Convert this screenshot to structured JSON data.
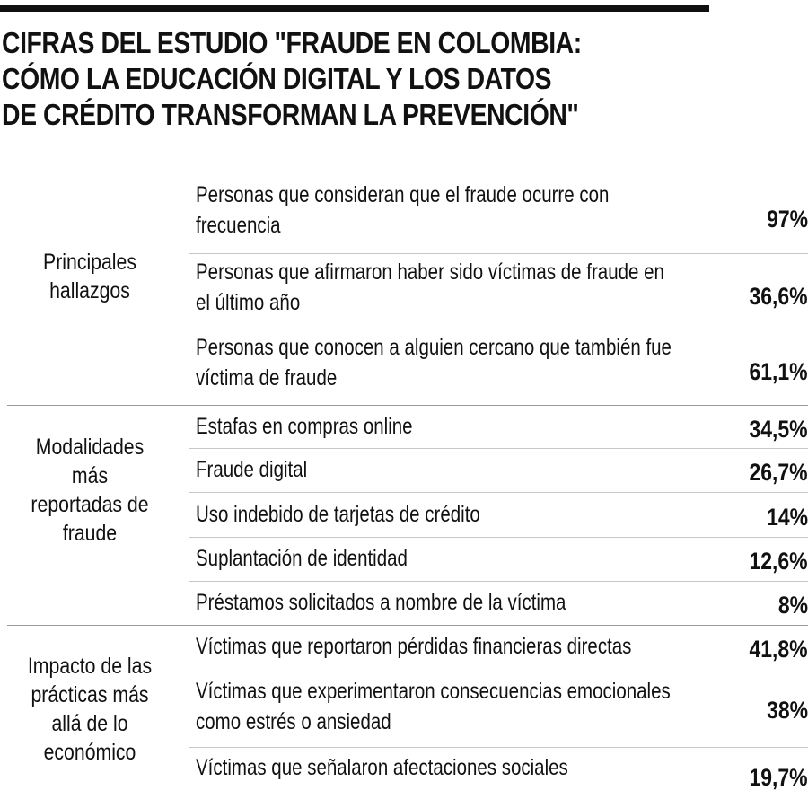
{
  "title": {
    "line1": "CIFRAS DEL ESTUDIO \"FRAUDE EN COLOMBIA:",
    "line2": "CÓMO LA EDUCACIÓN DIGITAL Y LOS DATOS",
    "line3": "DE CRÉDITO TRANSFORMAN LA PREVENCIÓN\""
  },
  "groups": [
    {
      "label": [
        "Principales",
        "hallazgos"
      ],
      "rows": [
        {
          "text": [
            "Personas que consideran que el fraude ocurre con",
            "frecuencia"
          ],
          "value": "97%"
        },
        {
          "text": [
            "Personas que afirmaron haber sido víctimas de fraude en",
            "el último año"
          ],
          "value": "36,6%"
        },
        {
          "text": [
            "Personas que conocen a alguien cercano que también fue",
            "víctima de fraude"
          ],
          "value": "61,1%"
        }
      ]
    },
    {
      "label": [
        "Modalidades",
        "más",
        "reportadas de",
        "fraude"
      ],
      "rows": [
        {
          "text": [
            "Estafas en compras online"
          ],
          "value": "34,5%"
        },
        {
          "text": [
            "Fraude digital"
          ],
          "value": "26,7%"
        },
        {
          "text": [
            "Uso indebido de tarjetas de crédito"
          ],
          "value": "14%"
        },
        {
          "text": [
            "Suplantación de identidad"
          ],
          "value": "12,6%"
        },
        {
          "text": [
            "Préstamos solicitados a nombre de la víctima"
          ],
          "value": "8%"
        }
      ]
    },
    {
      "label": [
        "Impacto de las",
        "prácticas más",
        "allá de lo",
        "económico"
      ],
      "rows": [
        {
          "text": [
            "Víctimas que reportaron pérdidas financieras directas"
          ],
          "value": "41,8%"
        },
        {
          "text": [
            "Víctimas que experimentaron consecuencias emocionales",
            "como estrés o ansiedad"
          ],
          "value": "38%"
        },
        {
          "text": [
            "Víctimas que señalaron afectaciones sociales"
          ],
          "value": "19,7%"
        }
      ]
    }
  ]
}
